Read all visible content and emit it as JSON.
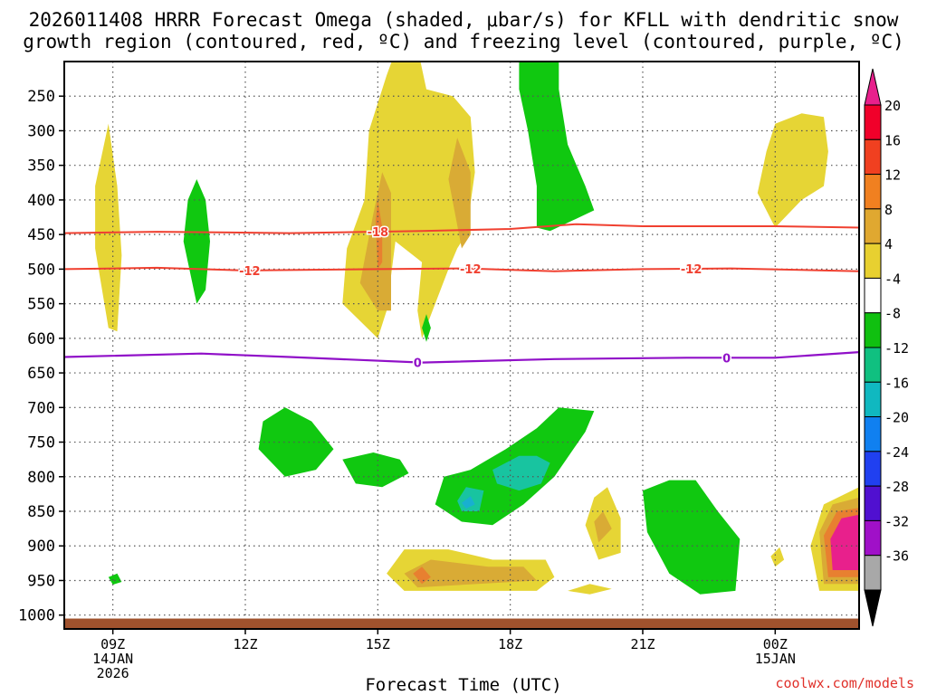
{
  "title_line1": "2026011408 HRRR Forecast Omega (shaded, μbar/s) for KFLL with dendritic snow",
  "title_line2": "growth region (contoured, red, ºC) and freezing level (contoured, purple, ºC)",
  "credit": "coolwx.com/models",
  "chart_data": {
    "type": "heatmap",
    "title": "2026011408 HRRR Forecast Omega (shaded, μbar/s) for KFLL with dendritic snow growth region (contoured, red, ºC) and freezing level (contoured, purple, ºC)",
    "xlabel": "Forecast Time (UTC)",
    "ylabel": "",
    "x_range_hours_utc": [
      7.9,
      25.9
    ],
    "y_range_hpa": [
      1020,
      200
    ],
    "y_ticks": [
      250,
      300,
      350,
      400,
      450,
      500,
      550,
      600,
      650,
      700,
      750,
      800,
      850,
      900,
      950,
      1000
    ],
    "x_ticks": [
      {
        "hour": 9,
        "lines": [
          "09Z",
          "14JAN",
          "2026"
        ]
      },
      {
        "hour": 12,
        "lines": [
          "12Z"
        ]
      },
      {
        "hour": 15,
        "lines": [
          "15Z"
        ]
      },
      {
        "hour": 18,
        "lines": [
          "18Z"
        ]
      },
      {
        "hour": 21,
        "lines": [
          "21Z"
        ]
      },
      {
        "hour": 24,
        "lines": [
          "00Z",
          "15JAN"
        ]
      }
    ],
    "colorbar": {
      "levels": [
        20,
        16,
        12,
        8,
        4,
        -4,
        -8,
        -12,
        -16,
        -20,
        -24,
        -28,
        -32,
        -36
      ],
      "colors": [
        "#f0002a",
        "#f04020",
        "#f08020",
        "#e0a830",
        "#e8d030",
        "#ffffff",
        "#10c010",
        "#10c080",
        "#10b8c0",
        "#1080f0",
        "#2040f0",
        "#5010d0",
        "#a010c8",
        "#a8a8a8"
      ],
      "over_color": "#e8208c",
      "under_color": "#000000"
    },
    "omega_regions": [
      {
        "color": "#e6d535",
        "pts": [
          [
            8.9,
            585
          ],
          [
            8.6,
            470
          ],
          [
            8.6,
            380
          ],
          [
            8.9,
            290
          ],
          [
            9.1,
            380
          ],
          [
            9.2,
            480
          ],
          [
            9.1,
            590
          ]
        ]
      },
      {
        "color": "#e6d535",
        "pts": [
          [
            15.0,
            600
          ],
          [
            14.2,
            550
          ],
          [
            14.3,
            470
          ],
          [
            14.7,
            400
          ],
          [
            14.8,
            300
          ],
          [
            15.2,
            220
          ],
          [
            15.6,
            150
          ],
          [
            15.7,
            120
          ],
          [
            15.9,
            120
          ],
          [
            15.9,
            180
          ],
          [
            16.1,
            240
          ],
          [
            16.7,
            250
          ],
          [
            17.1,
            280
          ],
          [
            17.2,
            360
          ],
          [
            17.0,
            450
          ],
          [
            16.8,
            470
          ],
          [
            16.6,
            500
          ],
          [
            16.0,
            600
          ],
          [
            15.9,
            560
          ],
          [
            16.0,
            490
          ],
          [
            15.4,
            460
          ],
          [
            15.2,
            560
          ]
        ]
      },
      {
        "color": "#e6d535",
        "pts": [
          [
            24.0,
            440
          ],
          [
            23.6,
            390
          ],
          [
            23.8,
            330
          ],
          [
            24.0,
            290
          ],
          [
            24.6,
            275
          ],
          [
            25.1,
            280
          ],
          [
            25.2,
            330
          ],
          [
            25.1,
            380
          ],
          [
            24.6,
            400
          ]
        ]
      },
      {
        "color": "#e6d535",
        "pts": [
          [
            15.6,
            965
          ],
          [
            15.2,
            940
          ],
          [
            15.6,
            905
          ],
          [
            16.6,
            905
          ],
          [
            17.6,
            920
          ],
          [
            18.8,
            920
          ],
          [
            19.0,
            945
          ],
          [
            18.6,
            965
          ]
        ]
      },
      {
        "color": "#e6d535",
        "pts": [
          [
            19.3,
            965
          ],
          [
            19.8,
            955
          ],
          [
            20.3,
            962
          ],
          [
            19.8,
            970
          ]
        ]
      },
      {
        "color": "#e6d535",
        "pts": [
          [
            23.9,
            915
          ],
          [
            24.1,
            902
          ],
          [
            24.2,
            920
          ],
          [
            24.0,
            930
          ]
        ]
      },
      {
        "color": "#e6d535",
        "pts": [
          [
            25.0,
            965
          ],
          [
            24.8,
            900
          ],
          [
            25.1,
            840
          ],
          [
            25.9,
            815
          ],
          [
            25.9,
            965
          ]
        ]
      },
      {
        "color": "#e6d535",
        "pts": [
          [
            20.0,
            920
          ],
          [
            19.7,
            870
          ],
          [
            19.9,
            830
          ],
          [
            20.2,
            815
          ],
          [
            20.5,
            860
          ],
          [
            20.5,
            910
          ]
        ]
      },
      {
        "color": "#d9ab35",
        "pts": [
          [
            15.0,
            560
          ],
          [
            14.6,
            520
          ],
          [
            14.9,
            420
          ],
          [
            15.1,
            360
          ],
          [
            15.3,
            390
          ],
          [
            15.3,
            470
          ],
          [
            15.3,
            560
          ]
        ]
      },
      {
        "color": "#d9ab35",
        "pts": [
          [
            16.9,
            470
          ],
          [
            16.6,
            370
          ],
          [
            16.8,
            310
          ],
          [
            17.1,
            360
          ],
          [
            17.1,
            450
          ]
        ]
      },
      {
        "color": "#d9ab35",
        "pts": [
          [
            15.9,
            960
          ],
          [
            15.6,
            940
          ],
          [
            16.2,
            920
          ],
          [
            17.5,
            930
          ],
          [
            18.3,
            930
          ],
          [
            18.6,
            950
          ]
        ]
      },
      {
        "color": "#d9ab35",
        "pts": [
          [
            25.1,
            955
          ],
          [
            25.0,
            880
          ],
          [
            25.3,
            840
          ],
          [
            25.9,
            830
          ],
          [
            25.9,
            955
          ]
        ]
      },
      {
        "color": "#d9ab35",
        "pts": [
          [
            20.0,
            895
          ],
          [
            19.9,
            865
          ],
          [
            20.1,
            850
          ],
          [
            20.3,
            875
          ]
        ]
      },
      {
        "color": "#e88030",
        "pts": [
          [
            15.0,
            500
          ],
          [
            14.95,
            430
          ],
          [
            15.0,
            400
          ],
          [
            15.1,
            440
          ],
          [
            15.1,
            490
          ]
        ]
      },
      {
        "color": "#e88030",
        "pts": [
          [
            16.0,
            955
          ],
          [
            15.8,
            940
          ],
          [
            16.0,
            930
          ],
          [
            16.2,
            945
          ]
        ]
      },
      {
        "color": "#e88030",
        "pts": [
          [
            25.2,
            945
          ],
          [
            25.1,
            885
          ],
          [
            25.4,
            850
          ],
          [
            25.9,
            845
          ],
          [
            25.9,
            945
          ]
        ]
      },
      {
        "color": "#e8208c",
        "pts": [
          [
            25.3,
            935
          ],
          [
            25.25,
            890
          ],
          [
            25.5,
            860
          ],
          [
            25.9,
            855
          ],
          [
            25.9,
            935
          ]
        ]
      },
      {
        "color": "#10c810",
        "pts": [
          [
            10.9,
            550
          ],
          [
            10.6,
            460
          ],
          [
            10.7,
            400
          ],
          [
            10.9,
            370
          ],
          [
            11.1,
            400
          ],
          [
            11.2,
            460
          ],
          [
            11.1,
            530
          ]
        ]
      },
      {
        "color": "#10c810",
        "pts": [
          [
            16.1,
            605
          ],
          [
            16.0,
            585
          ],
          [
            16.1,
            565
          ],
          [
            16.2,
            585
          ]
        ]
      },
      {
        "color": "#10c810",
        "pts": [
          [
            18.6,
            440
          ],
          [
            18.6,
            380
          ],
          [
            18.4,
            300
          ],
          [
            18.2,
            240
          ],
          [
            18.2,
            200
          ],
          [
            19.1,
            200
          ],
          [
            19.1,
            240
          ],
          [
            19.3,
            320
          ],
          [
            19.7,
            380
          ],
          [
            19.9,
            415
          ],
          [
            19.4,
            430
          ],
          [
            18.9,
            445
          ]
        ]
      },
      {
        "color": "#10c810",
        "pts": [
          [
            12.3,
            760
          ],
          [
            12.4,
            720
          ],
          [
            12.9,
            700
          ],
          [
            13.5,
            720
          ],
          [
            14.0,
            760
          ],
          [
            13.6,
            790
          ],
          [
            12.9,
            800
          ]
        ]
      },
      {
        "color": "#10c810",
        "pts": [
          [
            14.2,
            775
          ],
          [
            14.9,
            765
          ],
          [
            15.5,
            775
          ],
          [
            15.7,
            795
          ],
          [
            15.1,
            815
          ],
          [
            14.5,
            810
          ]
        ]
      },
      {
        "color": "#10c810",
        "pts": [
          [
            16.3,
            840
          ],
          [
            16.5,
            800
          ],
          [
            17.1,
            790
          ],
          [
            17.9,
            760
          ],
          [
            18.6,
            730
          ],
          [
            19.1,
            700
          ],
          [
            19.9,
            705
          ],
          [
            19.7,
            735
          ],
          [
            19.0,
            800
          ],
          [
            18.3,
            840
          ],
          [
            17.6,
            870
          ],
          [
            16.9,
            865
          ]
        ]
      },
      {
        "color": "#10c810",
        "pts": [
          [
            21.0,
            820
          ],
          [
            21.6,
            805
          ],
          [
            22.2,
            805
          ],
          [
            22.7,
            850
          ],
          [
            23.2,
            890
          ],
          [
            23.1,
            965
          ],
          [
            22.3,
            970
          ],
          [
            21.6,
            940
          ],
          [
            21.1,
            880
          ]
        ]
      },
      {
        "color": "#10c810",
        "pts": [
          [
            8.9,
            945
          ],
          [
            9.1,
            940
          ],
          [
            9.2,
            952
          ],
          [
            9.0,
            956
          ]
        ]
      },
      {
        "color": "#18c4a0",
        "pts": [
          [
            17.6,
            790
          ],
          [
            18.2,
            770
          ],
          [
            18.6,
            770
          ],
          [
            18.9,
            780
          ],
          [
            18.7,
            810
          ],
          [
            18.2,
            820
          ],
          [
            17.7,
            810
          ]
        ]
      },
      {
        "color": "#18c4a0",
        "pts": [
          [
            16.8,
            835
          ],
          [
            17.0,
            815
          ],
          [
            17.4,
            820
          ],
          [
            17.3,
            850
          ],
          [
            16.9,
            850
          ]
        ]
      },
      {
        "color": "#18b0d0",
        "pts": [
          [
            16.9,
            838
          ],
          [
            17.1,
            828
          ],
          [
            17.2,
            840
          ],
          [
            17.0,
            846
          ]
        ]
      }
    ],
    "dendritic_contours": [
      {
        "label": "-18",
        "label_hour": 15.0,
        "pts": [
          [
            7.9,
            448
          ],
          [
            10.0,
            446
          ],
          [
            13.0,
            448
          ],
          [
            16.0,
            445
          ],
          [
            18.0,
            442
          ],
          [
            19.5,
            435
          ],
          [
            21.0,
            438
          ],
          [
            24.0,
            438
          ],
          [
            25.9,
            440
          ]
        ]
      },
      {
        "label": "-12",
        "label_hour": 12.1,
        "pts": [
          [
            7.9,
            500
          ],
          [
            10.0,
            498
          ],
          [
            12.0,
            502
          ],
          [
            15.0,
            500
          ],
          [
            17.0,
            499
          ],
          [
            19.0,
            503
          ],
          [
            21.0,
            500
          ],
          [
            23.0,
            499
          ],
          [
            25.9,
            503
          ]
        ]
      }
    ],
    "dendritic_extra_labels": [
      {
        "label": "-12",
        "hour": 17.1
      },
      {
        "label": "-12",
        "hour": 22.1
      }
    ],
    "freezing_contour": {
      "label": "0",
      "label_hours": [
        15.9,
        22.9
      ],
      "pts": [
        [
          7.9,
          627
        ],
        [
          11.0,
          622
        ],
        [
          13.0,
          627
        ],
        [
          16.0,
          635
        ],
        [
          19.0,
          630
        ],
        [
          22.0,
          628
        ],
        [
          24.0,
          628
        ],
        [
          25.9,
          620
        ]
      ]
    },
    "terrain_color": "#a0522d",
    "contour_colors": {
      "dendritic": "#f04030",
      "freezing": "#9010c8"
    }
  }
}
